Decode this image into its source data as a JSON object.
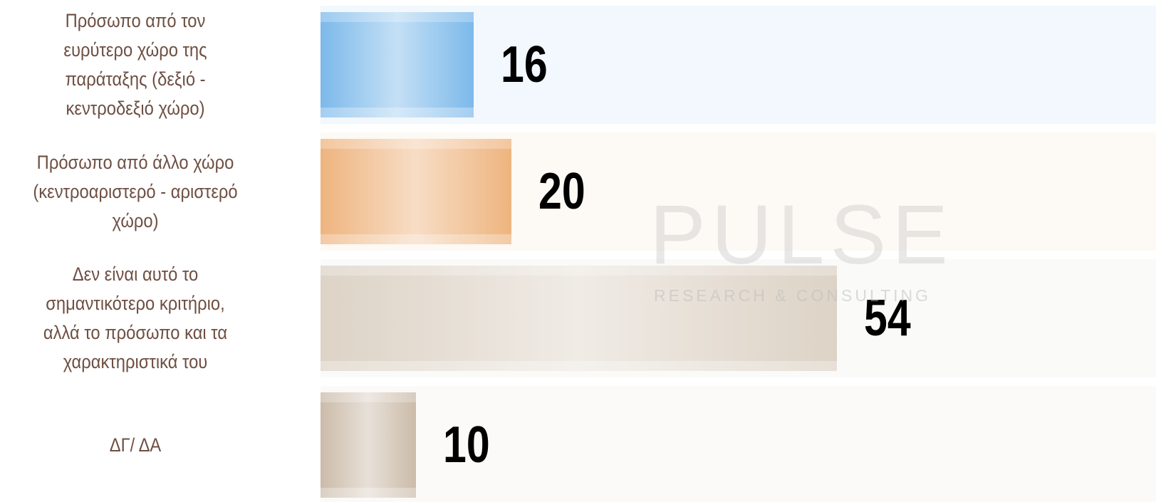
{
  "chart_data": {
    "type": "hbar",
    "categories": [
      "Πρόσωπο από τον ευρύτερο χώρο της παράταξης (δεξιό - κεντροδεξιό χώρο)",
      "Πρόσωπο από άλλο χώρο (κεντροαριστερό - αριστερό χώρο)",
      "Δεν είναι αυτό το σημαντικότερο κριτήριο, αλλά το πρόσωπο και τα χαρακτηριστικά του",
      "ΔΓ/ ΔΑ"
    ],
    "values": [
      16,
      20,
      54,
      10
    ],
    "colors": [
      "#7cb9ea",
      "#eeb47f",
      "#ddd3c6",
      "#cbbba9"
    ],
    "band_colors": [
      "#f2f8fd",
      "#fdf9f4",
      "#fafaf9",
      "#fbfaf9"
    ],
    "watermark": [
      "PULSE",
      "RESEARCH & CONSULTING"
    ]
  }
}
